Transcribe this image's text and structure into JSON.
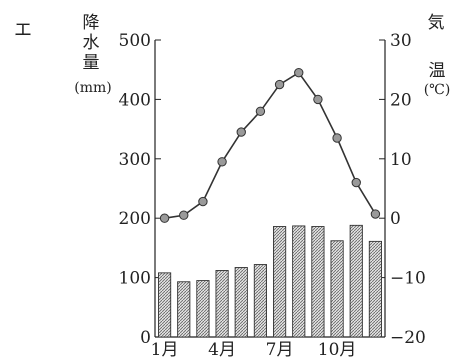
{
  "panel_mark": "エ",
  "chart_data": {
    "type": "climograph",
    "x": [
      "1月",
      "2月",
      "3月",
      "4月",
      "5月",
      "6月",
      "7月",
      "8月",
      "9月",
      "10月",
      "11月",
      "12月"
    ],
    "x_tick_labels": [
      "1月",
      "4月",
      "7月",
      "10月"
    ],
    "precipitation": {
      "chart_type": "bar",
      "axis": "left",
      "values": [
        108,
        93,
        95,
        112,
        117,
        122,
        186,
        187,
        186,
        162,
        188,
        161
      ]
    },
    "temperature": {
      "chart_type": "line",
      "axis": "right",
      "values": [
        0,
        0.5,
        2.8,
        9.5,
        14.5,
        18,
        22.5,
        24.5,
        20,
        13.5,
        6,
        0.7
      ]
    },
    "left_axis": {
      "label_chars": [
        "降",
        "水",
        "量"
      ],
      "unit": "(mm)",
      "range": [
        0,
        500
      ],
      "ticks": [
        "0",
        "100",
        "200",
        "300",
        "400",
        "500"
      ]
    },
    "right_axis": {
      "label_chars": [
        "気",
        "温"
      ],
      "unit": "(℃)",
      "range": [
        -20,
        30
      ],
      "ticks": [
        "−20",
        "−10",
        "0",
        "10",
        "20",
        "30"
      ]
    }
  }
}
